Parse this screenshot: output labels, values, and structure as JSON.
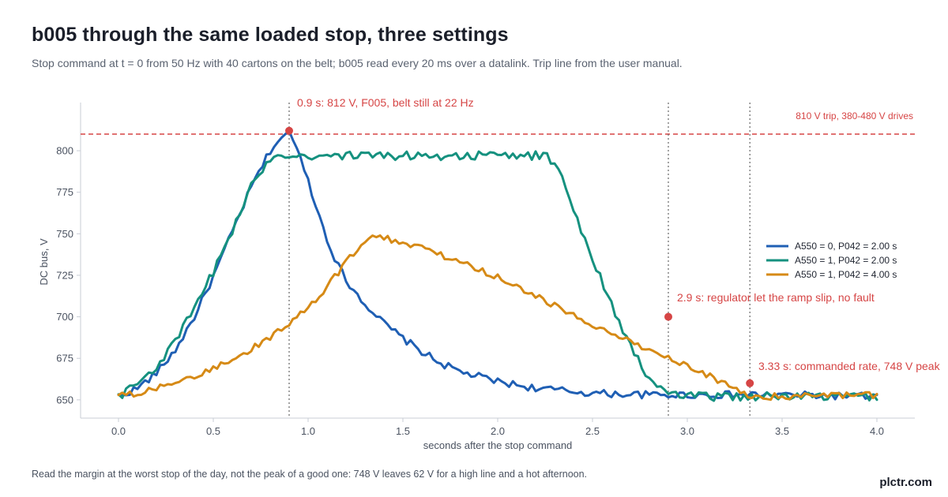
{
  "header": {
    "title": "b005 through the same loaded stop, three settings",
    "subtitle": "Stop command at t = 0 from 50 Hz with 40 cartons on the belt; b005 read every 20 ms over a datalink. Trip line from the user manual."
  },
  "footer": {
    "note": "Read the margin at the worst stop of the day, not the peak of a good one: 748 V leaves 62 V for a high line and a hot afternoon.",
    "brand": "plctr.com"
  },
  "chart_data": {
    "type": "line",
    "xlabel": "seconds after the stop command",
    "ylabel": "DC bus, V",
    "xlim": [
      -0.2,
      4.2
    ],
    "ylim": [
      639,
      829
    ],
    "xticks": [
      0.0,
      0.5,
      1.0,
      1.5,
      2.0,
      2.5,
      3.0,
      3.5,
      4.0
    ],
    "xtick_labels": [
      "0.0",
      "0.5",
      "1.0",
      "1.5",
      "2.0",
      "2.5",
      "3.0",
      "3.5",
      "4.0"
    ],
    "yticks": [
      650,
      675,
      700,
      725,
      750,
      775,
      800
    ],
    "ytick_labels": [
      "650",
      "675",
      "700",
      "725",
      "750",
      "775",
      "800"
    ],
    "grid": false,
    "legend_position": "right",
    "colors": {
      "blue": "#1f5fb4",
      "teal": "#15917f",
      "orange": "#d68a16",
      "red": "#d64545",
      "marker_line": "#666666"
    },
    "series": [
      {
        "name": "A550 = 0, P042 = 2.00 s",
        "color": "#1f5fb4",
        "x": [
          0,
          0.1,
          0.2,
          0.3,
          0.4,
          0.5,
          0.6,
          0.7,
          0.8,
          0.85,
          0.9,
          0.95,
          1.0,
          1.05,
          1.1,
          1.15,
          1.2,
          1.3,
          1.4,
          1.5,
          1.6,
          1.7,
          1.8,
          2.0,
          2.2,
          2.5,
          2.8,
          3.0,
          3.5,
          4.0
        ],
        "y": [
          652,
          657,
          666,
          680,
          700,
          724,
          751,
          778,
          800,
          807,
          812,
          798,
          782,
          764,
          747,
          733,
          722,
          708,
          696,
          687,
          679,
          672,
          667,
          661,
          657,
          654,
          653,
          653,
          653,
          652
        ]
      },
      {
        "name": "A550 = 1, P042 = 2.00 s",
        "color": "#15917f",
        "x": [
          0,
          0.1,
          0.2,
          0.3,
          0.4,
          0.5,
          0.6,
          0.7,
          0.8,
          0.88,
          0.95,
          1.2,
          1.5,
          1.8,
          2.0,
          2.25,
          2.3,
          2.35,
          2.4,
          2.5,
          2.6,
          2.7,
          2.8,
          2.9,
          3.0,
          3.5,
          4.0
        ],
        "y": [
          652,
          660,
          670,
          685,
          705,
          727,
          752,
          778,
          796,
          798,
          797,
          797,
          797,
          797,
          797,
          797,
          793,
          780,
          765,
          735,
          708,
          682,
          662,
          654,
          652,
          652,
          652
        ]
      },
      {
        "name": "A550 = 1, P042 = 4.00 s",
        "color": "#d68a16",
        "x": [
          0,
          0.2,
          0.4,
          0.6,
          0.8,
          1.0,
          1.1,
          1.2,
          1.3,
          1.35,
          1.4,
          1.6,
          1.8,
          2.0,
          2.2,
          2.4,
          2.6,
          2.8,
          3.0,
          3.2,
          3.33,
          3.5,
          4.0
        ],
        "y": [
          652,
          657,
          664,
          674,
          688,
          705,
          718,
          733,
          745,
          748,
          748,
          741,
          733,
          724,
          713,
          701,
          690,
          680,
          670,
          660,
          652,
          652,
          653
        ]
      }
    ],
    "reference_line": {
      "y": 810,
      "label": "810 V trip, 380-480 V drives"
    },
    "vlines": [
      0.9,
      2.9,
      3.33
    ],
    "annotations": [
      {
        "x": 0.9,
        "y": 812,
        "text": "0.9 s: 812 V, F005, belt still at 22 Hz"
      },
      {
        "x": 2.9,
        "y": 700,
        "text": "2.9 s: regulator let the ramp slip, no fault"
      },
      {
        "x": 3.33,
        "y": 660,
        "text": "3.33 s: commanded rate, 748 V peak"
      }
    ]
  }
}
